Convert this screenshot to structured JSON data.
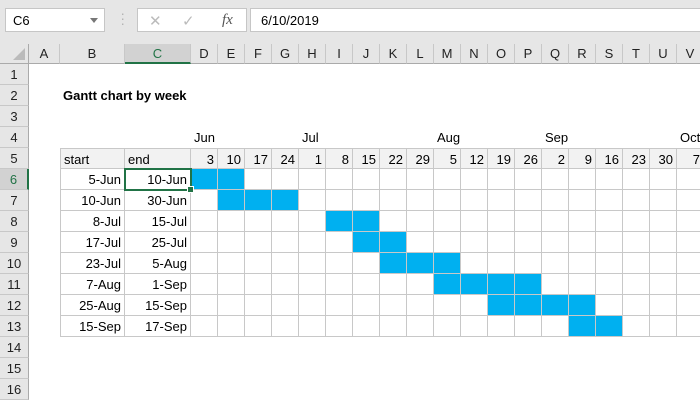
{
  "formula_bar": {
    "name_box": "C6",
    "cancel_icon": "✕",
    "enter_icon": "✓",
    "fx_label": "fx",
    "formula": "6/10/2019"
  },
  "columns": [
    "A",
    "B",
    "C",
    "D",
    "E",
    "F",
    "G",
    "H",
    "I",
    "J",
    "K",
    "L",
    "M",
    "N",
    "O",
    "P",
    "Q",
    "R",
    "S",
    "T",
    "U",
    "V"
  ],
  "rows": [
    "1",
    "2",
    "3",
    "4",
    "5",
    "6",
    "7",
    "8",
    "9",
    "10",
    "11",
    "12",
    "13",
    "14",
    "15",
    "16"
  ],
  "selected_cell": "C6",
  "title": "Gantt chart by week",
  "months": [
    {
      "col": "D",
      "label": "Jun"
    },
    {
      "col": "H",
      "label": "Jul"
    },
    {
      "col": "M",
      "label": "Aug"
    },
    {
      "col": "Q",
      "label": "Sep"
    },
    {
      "col": "V",
      "label": "Oct"
    }
  ],
  "header": {
    "start": "start",
    "end": "end"
  },
  "week_days": [
    "3",
    "10",
    "17",
    "24",
    "1",
    "8",
    "15",
    "22",
    "29",
    "5",
    "12",
    "19",
    "26",
    "2",
    "9",
    "16",
    "23",
    "30",
    "7"
  ],
  "tasks": [
    {
      "start": "5-Jun",
      "end": "10-Jun",
      "weeks": [
        "D",
        "E"
      ]
    },
    {
      "start": "10-Jun",
      "end": "30-Jun",
      "weeks": [
        "E",
        "F",
        "G"
      ]
    },
    {
      "start": "8-Jul",
      "end": "15-Jul",
      "weeks": [
        "I",
        "J"
      ]
    },
    {
      "start": "17-Jul",
      "end": "25-Jul",
      "weeks": [
        "J",
        "K"
      ]
    },
    {
      "start": "23-Jul",
      "end": "5-Aug",
      "weeks": [
        "K",
        "L",
        "M"
      ]
    },
    {
      "start": "7-Aug",
      "end": "1-Sep",
      "weeks": [
        "M",
        "N",
        "O",
        "P"
      ]
    },
    {
      "start": "25-Aug",
      "end": "15-Sep",
      "weeks": [
        "O",
        "P",
        "Q",
        "R"
      ]
    },
    {
      "start": "15-Sep",
      "end": "17-Sep",
      "weeks": [
        "R",
        "S"
      ]
    }
  ],
  "colors": {
    "bar": "#00B0F0",
    "selection": "#217346",
    "header_fill": "#F2F2F2"
  }
}
